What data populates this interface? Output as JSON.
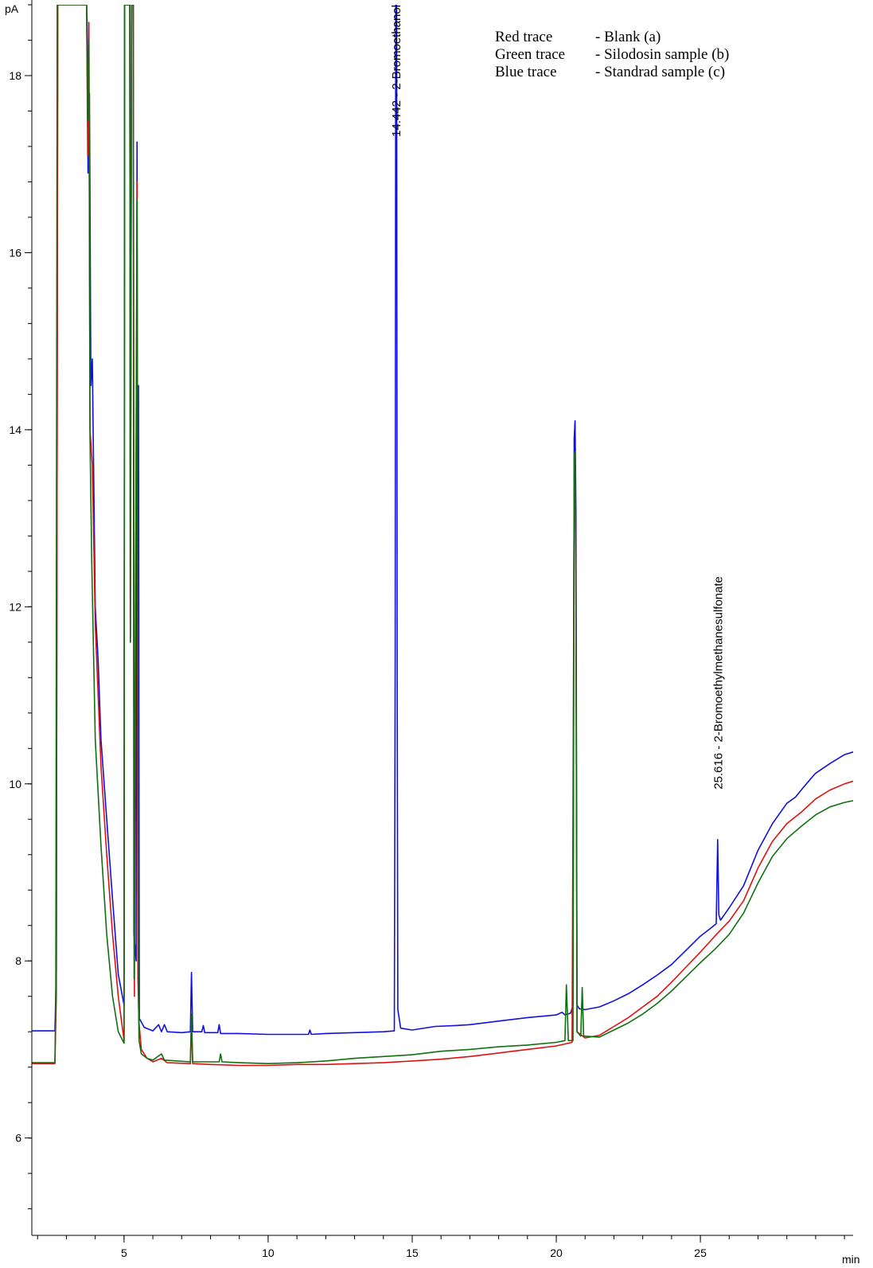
{
  "chart_data": {
    "type": "line",
    "title": "",
    "y_unit": "pA",
    "x_unit": "min",
    "xlim": [
      1.8,
      30.3
    ],
    "ylim": [
      4.9,
      18.8
    ],
    "x_ticks": [
      5,
      10,
      15,
      20,
      25
    ],
    "y_ticks": [
      6,
      8,
      10,
      12,
      14,
      16,
      18
    ],
    "x_minor_step": 1,
    "y_minor_step": 0.4,
    "grid": false,
    "legend": {
      "placement": "top-right",
      "rows": [
        {
          "name": "Red trace",
          "desc": "- Blank (a)"
        },
        {
          "name": "Green trace",
          "desc": "- Silodosin sample (b)"
        },
        {
          "name": "Blue trace",
          "desc": "- Standrad sample (c)"
        }
      ]
    },
    "annotations": [
      {
        "x": 14.442,
        "label": "14.442 -  2-Bromoethanol"
      },
      {
        "x": 25.616,
        "label": "25.616 -  2-Bromoethylmethanesulfonate"
      }
    ],
    "series": [
      {
        "name": "Blue trace",
        "color": "#1010e0",
        "points": [
          [
            1.8,
            7.21
          ],
          [
            2.6,
            7.21
          ],
          [
            2.65,
            7.9
          ],
          [
            2.7,
            18.8
          ],
          [
            3.7,
            18.8
          ],
          [
            3.72,
            18.6
          ],
          [
            3.75,
            16.9
          ],
          [
            3.8,
            17.8
          ],
          [
            3.85,
            14.5
          ],
          [
            3.9,
            14.8
          ],
          [
            4.0,
            12.0
          ],
          [
            4.1,
            11.4
          ],
          [
            4.2,
            10.5
          ],
          [
            4.4,
            9.6
          ],
          [
            4.6,
            8.7
          ],
          [
            4.8,
            7.85
          ],
          [
            5.0,
            7.5
          ],
          [
            5.02,
            18.8
          ],
          [
            5.2,
            18.8
          ],
          [
            5.22,
            11.6
          ],
          [
            5.26,
            18.8
          ],
          [
            5.32,
            18.8
          ],
          [
            5.34,
            8.3
          ],
          [
            5.42,
            8.0
          ],
          [
            5.45,
            17.25
          ],
          [
            5.48,
            8.3
          ],
          [
            5.5,
            14.5
          ],
          [
            5.53,
            7.35
          ],
          [
            5.7,
            7.25
          ],
          [
            6.0,
            7.21
          ],
          [
            6.2,
            7.28
          ],
          [
            6.3,
            7.2
          ],
          [
            6.4,
            7.28
          ],
          [
            6.5,
            7.2
          ],
          [
            7.0,
            7.19
          ],
          [
            7.3,
            7.2
          ],
          [
            7.34,
            7.87
          ],
          [
            7.38,
            7.2
          ],
          [
            7.7,
            7.2
          ],
          [
            7.75,
            7.27
          ],
          [
            7.8,
            7.19
          ],
          [
            8.25,
            7.19
          ],
          [
            8.3,
            7.28
          ],
          [
            8.35,
            7.18
          ],
          [
            9.0,
            7.18
          ],
          [
            10.0,
            7.17
          ],
          [
            11.0,
            7.17
          ],
          [
            11.4,
            7.17
          ],
          [
            11.45,
            7.22
          ],
          [
            11.5,
            7.17
          ],
          [
            12.0,
            7.18
          ],
          [
            13.0,
            7.19
          ],
          [
            14.0,
            7.2
          ],
          [
            14.38,
            7.21
          ],
          [
            14.41,
            11.5
          ],
          [
            14.43,
            18.8
          ],
          [
            14.46,
            18.8
          ],
          [
            14.48,
            11.2
          ],
          [
            14.5,
            7.45
          ],
          [
            14.6,
            7.24
          ],
          [
            15.0,
            7.22
          ],
          [
            15.8,
            7.26
          ],
          [
            16.5,
            7.27
          ],
          [
            17.0,
            7.28
          ],
          [
            18.0,
            7.32
          ],
          [
            19.0,
            7.36
          ],
          [
            20.0,
            7.39
          ],
          [
            20.2,
            7.42
          ],
          [
            20.3,
            7.39
          ],
          [
            20.5,
            7.41
          ],
          [
            20.58,
            7.5
          ],
          [
            20.62,
            13.9
          ],
          [
            20.65,
            14.1
          ],
          [
            20.68,
            13.1
          ],
          [
            20.72,
            7.5
          ],
          [
            20.8,
            7.46
          ],
          [
            21.0,
            7.45
          ],
          [
            21.5,
            7.48
          ],
          [
            22.0,
            7.55
          ],
          [
            22.5,
            7.63
          ],
          [
            23.0,
            7.73
          ],
          [
            23.5,
            7.84
          ],
          [
            24.0,
            7.96
          ],
          [
            24.5,
            8.12
          ],
          [
            25.0,
            8.28
          ],
          [
            25.4,
            8.38
          ],
          [
            25.55,
            8.42
          ],
          [
            25.6,
            9.37
          ],
          [
            25.64,
            8.52
          ],
          [
            25.7,
            8.46
          ],
          [
            26.0,
            8.6
          ],
          [
            26.5,
            8.85
          ],
          [
            27.0,
            9.25
          ],
          [
            27.5,
            9.55
          ],
          [
            28.0,
            9.78
          ],
          [
            28.3,
            9.85
          ],
          [
            28.6,
            9.97
          ],
          [
            29.0,
            10.12
          ],
          [
            29.5,
            10.23
          ],
          [
            30.0,
            10.33
          ],
          [
            30.3,
            10.36
          ]
        ]
      },
      {
        "name": "Red trace",
        "color": "#e01010",
        "points": [
          [
            1.8,
            6.84
          ],
          [
            2.6,
            6.84
          ],
          [
            2.65,
            7.6
          ],
          [
            2.7,
            18.8
          ],
          [
            3.7,
            18.8
          ],
          [
            3.74,
            17.1
          ],
          [
            3.78,
            18.6
          ],
          [
            3.82,
            14.0
          ],
          [
            3.9,
            13.6
          ],
          [
            4.0,
            11.8
          ],
          [
            4.2,
            10.2
          ],
          [
            4.4,
            9.2
          ],
          [
            4.6,
            8.3
          ],
          [
            4.8,
            7.6
          ],
          [
            5.0,
            7.1
          ],
          [
            5.02,
            18.8
          ],
          [
            5.2,
            18.8
          ],
          [
            5.22,
            11.6
          ],
          [
            5.26,
            18.8
          ],
          [
            5.32,
            18.8
          ],
          [
            5.36,
            7.6
          ],
          [
            5.45,
            16.8
          ],
          [
            5.48,
            7.8
          ],
          [
            5.52,
            7.3
          ],
          [
            5.6,
            7.0
          ],
          [
            5.8,
            6.9
          ],
          [
            6.0,
            6.86
          ],
          [
            6.3,
            6.9
          ],
          [
            6.5,
            6.85
          ],
          [
            7.3,
            6.84
          ],
          [
            7.34,
            7.3
          ],
          [
            7.38,
            6.84
          ],
          [
            8.0,
            6.83
          ],
          [
            9.0,
            6.82
          ],
          [
            10.0,
            6.82
          ],
          [
            11.0,
            6.83
          ],
          [
            12.0,
            6.83
          ],
          [
            13.0,
            6.84
          ],
          [
            14.0,
            6.85
          ],
          [
            15.0,
            6.87
          ],
          [
            16.0,
            6.89
          ],
          [
            17.0,
            6.92
          ],
          [
            18.0,
            6.96
          ],
          [
            19.0,
            7.0
          ],
          [
            20.0,
            7.04
          ],
          [
            20.55,
            7.08
          ],
          [
            20.62,
            13.3
          ],
          [
            20.65,
            13.6
          ],
          [
            20.68,
            12.4
          ],
          [
            20.72,
            7.2
          ],
          [
            21.0,
            7.13
          ],
          [
            21.5,
            7.16
          ],
          [
            22.0,
            7.26
          ],
          [
            22.5,
            7.36
          ],
          [
            23.0,
            7.48
          ],
          [
            23.5,
            7.6
          ],
          [
            24.0,
            7.76
          ],
          [
            24.5,
            7.93
          ],
          [
            25.0,
            8.1
          ],
          [
            25.5,
            8.28
          ],
          [
            26.0,
            8.45
          ],
          [
            26.5,
            8.68
          ],
          [
            27.0,
            9.05
          ],
          [
            27.5,
            9.35
          ],
          [
            28.0,
            9.55
          ],
          [
            28.5,
            9.68
          ],
          [
            29.0,
            9.83
          ],
          [
            29.5,
            9.93
          ],
          [
            30.0,
            10.0
          ],
          [
            30.3,
            10.03
          ]
        ]
      },
      {
        "name": "Green trace",
        "color": "#107010",
        "points": [
          [
            1.8,
            6.85
          ],
          [
            2.6,
            6.85
          ],
          [
            2.63,
            7.6
          ],
          [
            2.68,
            18.8
          ],
          [
            3.7,
            18.8
          ],
          [
            3.74,
            17.5
          ],
          [
            3.78,
            18.4
          ],
          [
            3.82,
            13.9
          ],
          [
            3.88,
            12.5
          ],
          [
            4.0,
            10.5
          ],
          [
            4.1,
            9.9
          ],
          [
            4.2,
            9.3
          ],
          [
            4.4,
            8.3
          ],
          [
            4.6,
            7.6
          ],
          [
            4.8,
            7.2
          ],
          [
            5.0,
            7.07
          ],
          [
            5.02,
            18.8
          ],
          [
            5.2,
            18.8
          ],
          [
            5.22,
            11.6
          ],
          [
            5.26,
            18.8
          ],
          [
            5.32,
            18.8
          ],
          [
            5.35,
            7.8
          ],
          [
            5.45,
            16.6
          ],
          [
            5.5,
            7.6
          ],
          [
            5.52,
            7.1
          ],
          [
            5.6,
            6.95
          ],
          [
            5.8,
            6.9
          ],
          [
            6.0,
            6.88
          ],
          [
            6.3,
            6.95
          ],
          [
            6.4,
            6.88
          ],
          [
            7.3,
            6.86
          ],
          [
            7.34,
            7.4
          ],
          [
            7.38,
            6.86
          ],
          [
            8.3,
            6.86
          ],
          [
            8.35,
            6.95
          ],
          [
            8.4,
            6.86
          ],
          [
            9.0,
            6.85
          ],
          [
            10.0,
            6.84
          ],
          [
            11.0,
            6.85
          ],
          [
            12.0,
            6.87
          ],
          [
            13.0,
            6.9
          ],
          [
            14.0,
            6.92
          ],
          [
            15.0,
            6.94
          ],
          [
            16.0,
            6.98
          ],
          [
            17.0,
            7.0
          ],
          [
            18.0,
            7.03
          ],
          [
            19.0,
            7.05
          ],
          [
            20.0,
            7.08
          ],
          [
            20.3,
            7.1
          ],
          [
            20.35,
            7.73
          ],
          [
            20.42,
            7.1
          ],
          [
            20.58,
            7.1
          ],
          [
            20.62,
            13.7
          ],
          [
            20.65,
            13.75
          ],
          [
            20.68,
            12.0
          ],
          [
            20.72,
            7.2
          ],
          [
            20.85,
            7.15
          ],
          [
            20.9,
            7.7
          ],
          [
            20.95,
            7.15
          ],
          [
            21.5,
            7.14
          ],
          [
            22.0,
            7.22
          ],
          [
            22.5,
            7.3
          ],
          [
            23.0,
            7.4
          ],
          [
            23.5,
            7.52
          ],
          [
            24.0,
            7.66
          ],
          [
            24.5,
            7.82
          ],
          [
            25.0,
            7.98
          ],
          [
            25.5,
            8.13
          ],
          [
            26.0,
            8.3
          ],
          [
            26.5,
            8.54
          ],
          [
            27.0,
            8.88
          ],
          [
            27.5,
            9.18
          ],
          [
            28.0,
            9.38
          ],
          [
            28.5,
            9.52
          ],
          [
            29.0,
            9.65
          ],
          [
            29.5,
            9.74
          ],
          [
            30.0,
            9.79
          ],
          [
            30.3,
            9.81
          ]
        ]
      }
    ]
  }
}
